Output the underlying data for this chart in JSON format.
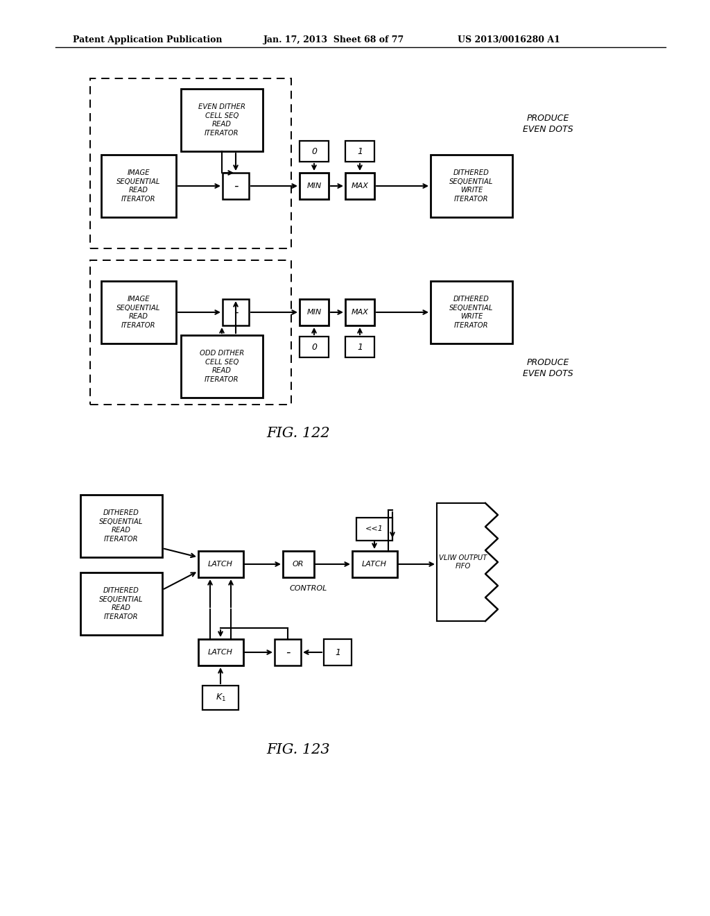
{
  "header_left": "Patent Application Publication",
  "header_mid": "Jan. 17, 2013  Sheet 68 of 77",
  "header_right": "US 2013/0016280 A1",
  "fig122_label": "FIG. 122",
  "fig123_label": "FIG. 123",
  "bg_color": "#ffffff",
  "box_color": "#000000",
  "text_color": "#000000"
}
